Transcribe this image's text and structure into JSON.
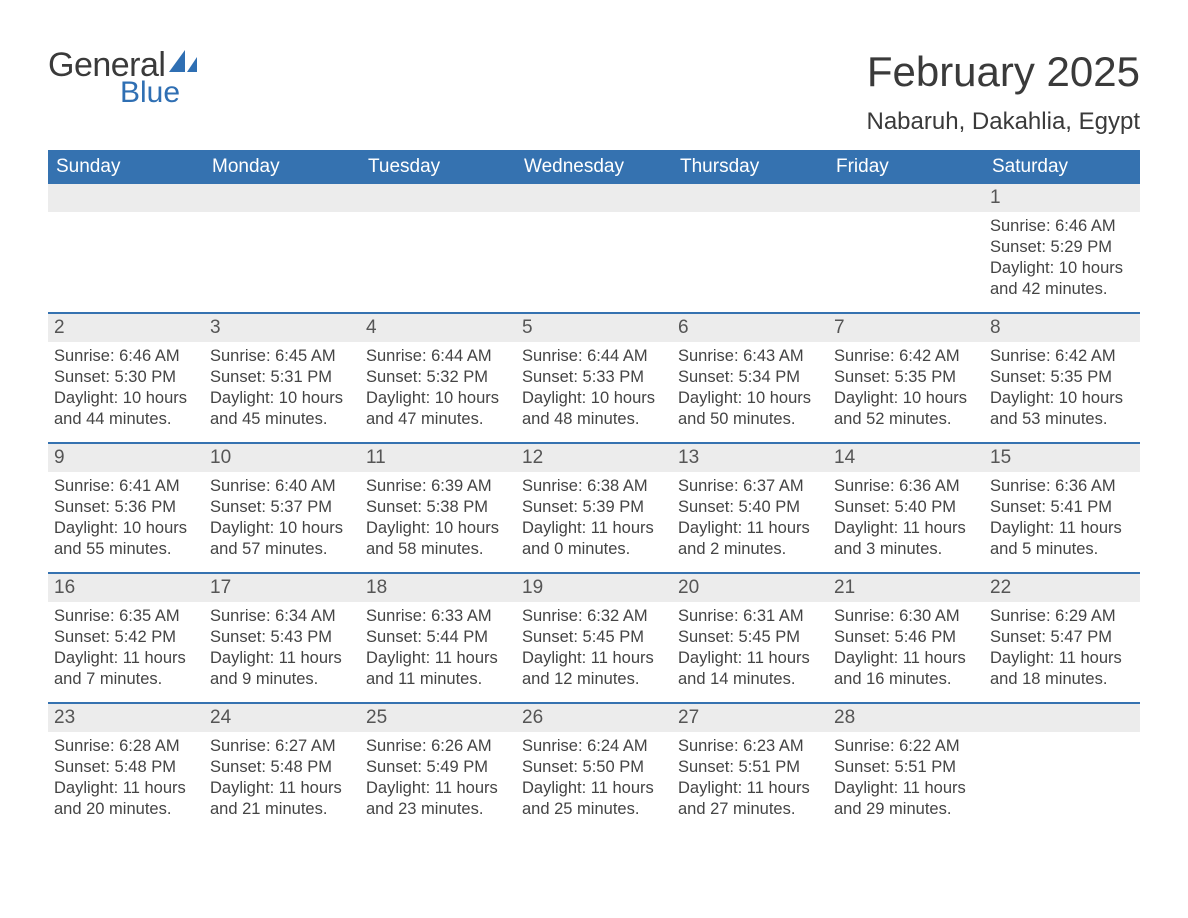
{
  "logo": {
    "text_general": "General",
    "text_blue": "Blue",
    "icon_color": "#2f6fb3"
  },
  "title": {
    "month_year": "February 2025",
    "location": "Nabaruh, Dakahlia, Egypt"
  },
  "styling": {
    "header_bg": "#3572b0",
    "header_text_color": "#ffffff",
    "daynum_bg": "#ececec",
    "body_text_color": "#444444",
    "week_border_color": "#3572b0",
    "page_bg": "#ffffff",
    "title_fontsize": 42,
    "location_fontsize": 24,
    "weekday_fontsize": 19,
    "daynum_fontsize": 19,
    "body_fontsize": 16.5,
    "font_family": "Arial"
  },
  "weekdays": [
    "Sunday",
    "Monday",
    "Tuesday",
    "Wednesday",
    "Thursday",
    "Friday",
    "Saturday"
  ],
  "days": [
    {
      "num": 1,
      "sunrise": "6:46 AM",
      "sunset": "5:29 PM",
      "daylight": "10 hours and 42 minutes."
    },
    {
      "num": 2,
      "sunrise": "6:46 AM",
      "sunset": "5:30 PM",
      "daylight": "10 hours and 44 minutes."
    },
    {
      "num": 3,
      "sunrise": "6:45 AM",
      "sunset": "5:31 PM",
      "daylight": "10 hours and 45 minutes."
    },
    {
      "num": 4,
      "sunrise": "6:44 AM",
      "sunset": "5:32 PM",
      "daylight": "10 hours and 47 minutes."
    },
    {
      "num": 5,
      "sunrise": "6:44 AM",
      "sunset": "5:33 PM",
      "daylight": "10 hours and 48 minutes."
    },
    {
      "num": 6,
      "sunrise": "6:43 AM",
      "sunset": "5:34 PM",
      "daylight": "10 hours and 50 minutes."
    },
    {
      "num": 7,
      "sunrise": "6:42 AM",
      "sunset": "5:35 PM",
      "daylight": "10 hours and 52 minutes."
    },
    {
      "num": 8,
      "sunrise": "6:42 AM",
      "sunset": "5:35 PM",
      "daylight": "10 hours and 53 minutes."
    },
    {
      "num": 9,
      "sunrise": "6:41 AM",
      "sunset": "5:36 PM",
      "daylight": "10 hours and 55 minutes."
    },
    {
      "num": 10,
      "sunrise": "6:40 AM",
      "sunset": "5:37 PM",
      "daylight": "10 hours and 57 minutes."
    },
    {
      "num": 11,
      "sunrise": "6:39 AM",
      "sunset": "5:38 PM",
      "daylight": "10 hours and 58 minutes."
    },
    {
      "num": 12,
      "sunrise": "6:38 AM",
      "sunset": "5:39 PM",
      "daylight": "11 hours and 0 minutes."
    },
    {
      "num": 13,
      "sunrise": "6:37 AM",
      "sunset": "5:40 PM",
      "daylight": "11 hours and 2 minutes."
    },
    {
      "num": 14,
      "sunrise": "6:36 AM",
      "sunset": "5:40 PM",
      "daylight": "11 hours and 3 minutes."
    },
    {
      "num": 15,
      "sunrise": "6:36 AM",
      "sunset": "5:41 PM",
      "daylight": "11 hours and 5 minutes."
    },
    {
      "num": 16,
      "sunrise": "6:35 AM",
      "sunset": "5:42 PM",
      "daylight": "11 hours and 7 minutes."
    },
    {
      "num": 17,
      "sunrise": "6:34 AM",
      "sunset": "5:43 PM",
      "daylight": "11 hours and 9 minutes."
    },
    {
      "num": 18,
      "sunrise": "6:33 AM",
      "sunset": "5:44 PM",
      "daylight": "11 hours and 11 minutes."
    },
    {
      "num": 19,
      "sunrise": "6:32 AM",
      "sunset": "5:45 PM",
      "daylight": "11 hours and 12 minutes."
    },
    {
      "num": 20,
      "sunrise": "6:31 AM",
      "sunset": "5:45 PM",
      "daylight": "11 hours and 14 minutes."
    },
    {
      "num": 21,
      "sunrise": "6:30 AM",
      "sunset": "5:46 PM",
      "daylight": "11 hours and 16 minutes."
    },
    {
      "num": 22,
      "sunrise": "6:29 AM",
      "sunset": "5:47 PM",
      "daylight": "11 hours and 18 minutes."
    },
    {
      "num": 23,
      "sunrise": "6:28 AM",
      "sunset": "5:48 PM",
      "daylight": "11 hours and 20 minutes."
    },
    {
      "num": 24,
      "sunrise": "6:27 AM",
      "sunset": "5:48 PM",
      "daylight": "11 hours and 21 minutes."
    },
    {
      "num": 25,
      "sunrise": "6:26 AM",
      "sunset": "5:49 PM",
      "daylight": "11 hours and 23 minutes."
    },
    {
      "num": 26,
      "sunrise": "6:24 AM",
      "sunset": "5:50 PM",
      "daylight": "11 hours and 25 minutes."
    },
    {
      "num": 27,
      "sunrise": "6:23 AM",
      "sunset": "5:51 PM",
      "daylight": "11 hours and 27 minutes."
    },
    {
      "num": 28,
      "sunrise": "6:22 AM",
      "sunset": "5:51 PM",
      "daylight": "11 hours and 29 minutes."
    }
  ],
  "labels": {
    "sunrise": "Sunrise:",
    "sunset": "Sunset:",
    "daylight": "Daylight:"
  },
  "layout": {
    "first_day_weekday_index": 6,
    "num_days": 28
  }
}
